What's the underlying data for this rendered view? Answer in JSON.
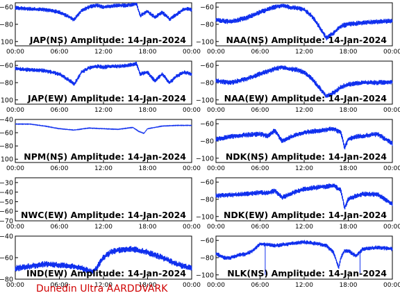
{
  "footer": "Dunedin Ultra AARDDVARK",
  "colors": {
    "trace": "#1030ee",
    "axis": "#000000",
    "footer": "#d00000"
  },
  "x_ticks": [
    "00:00",
    "06:00",
    "12:00",
    "18:00",
    "00:00"
  ],
  "chart_data": [
    {
      "type": "line",
      "title": "JAP(NS) Amplitude: 14-Jan-2024",
      "x_hours": [
        0,
        2,
        4,
        6,
        7.5,
        8,
        9,
        10,
        11,
        12,
        13,
        14,
        15,
        16,
        16.5,
        17,
        18,
        19,
        20,
        21,
        22,
        23,
        24
      ],
      "y": [
        -61,
        -62,
        -63,
        -66,
        -72,
        -75,
        -64,
        -60,
        -58,
        -60,
        -59,
        -58,
        -58,
        -57,
        -56,
        -70,
        -65,
        -72,
        -66,
        -74,
        -68,
        -62,
        -63
      ],
      "band": 5,
      "ylim": [
        -105,
        -55
      ],
      "y_ticks": [
        -100,
        -80,
        -60
      ]
    },
    {
      "type": "line",
      "title": "NAA(NS) Amplitude: 14-Jan-2024",
      "x_hours": [
        0,
        2,
        4,
        6,
        8,
        9,
        10,
        11,
        12,
        13,
        14,
        15,
        16,
        17,
        18,
        20,
        22,
        24
      ],
      "y": [
        -75,
        -77,
        -73,
        -66,
        -60,
        -58,
        -60,
        -61,
        -63,
        -70,
        -82,
        -96,
        -90,
        -82,
        -80,
        -78,
        -77,
        -76
      ],
      "band": 6,
      "ylim": [
        -105,
        -55
      ],
      "y_ticks": [
        -100,
        -80,
        -60
      ]
    },
    {
      "type": "line",
      "title": "JAP(EW) Amplitude: 14-Jan-2024",
      "x_hours": [
        0,
        2,
        4,
        6,
        7.5,
        8,
        9,
        10,
        11,
        12,
        13,
        14,
        15,
        16,
        16.5,
        17,
        18,
        19,
        20,
        21,
        22,
        23,
        24
      ],
      "y": [
        -64,
        -65,
        -66,
        -70,
        -78,
        -82,
        -68,
        -63,
        -61,
        -62,
        -61,
        -61,
        -60,
        -59,
        -58,
        -70,
        -68,
        -78,
        -70,
        -80,
        -72,
        -68,
        -70
      ],
      "band": 5,
      "ylim": [
        -105,
        -55
      ],
      "y_ticks": [
        -100,
        -80,
        -60
      ]
    },
    {
      "type": "line",
      "title": "NAA(EW) Amplitude: 14-Jan-2024",
      "x_hours": [
        0,
        2,
        4,
        6,
        8,
        9,
        10,
        11,
        12,
        13,
        14,
        15,
        16,
        17,
        18,
        20,
        22,
        24
      ],
      "y": [
        -78,
        -80,
        -76,
        -70,
        -64,
        -62,
        -64,
        -65,
        -68,
        -75,
        -85,
        -96,
        -92,
        -85,
        -82,
        -80,
        -80,
        -79
      ],
      "band": 6,
      "ylim": [
        -105,
        -55
      ],
      "y_ticks": [
        -100,
        -80,
        -60
      ]
    },
    {
      "type": "line",
      "title": "NPM(NS) Amplitude: 14-Jan-2024",
      "x_hours": [
        0,
        2,
        4,
        6,
        8,
        10,
        12,
        14,
        16,
        16.8,
        17.5,
        18,
        20,
        22,
        24
      ],
      "y": [
        -47,
        -47,
        -50,
        -54,
        -56,
        -53,
        -54,
        -55,
        -52,
        -58,
        -61,
        -54,
        -50,
        -49,
        -49
      ],
      "band": 1,
      "ylim": [
        -105,
        -40
      ],
      "y_ticks": [
        -100,
        -80,
        -60,
        -40
      ]
    },
    {
      "type": "line",
      "title": "NDK(NS) Amplitude: 14-Jan-2024",
      "x_hours": [
        0,
        2,
        4,
        6,
        7,
        8,
        9,
        10,
        12,
        14,
        16,
        17,
        17.5,
        18,
        19,
        20,
        22,
        24
      ],
      "y": [
        -78,
        -75,
        -73,
        -72,
        -74,
        -68,
        -80,
        -76,
        -70,
        -68,
        -66,
        -70,
        -88,
        -78,
        -75,
        -74,
        -72,
        -83
      ],
      "band": 6,
      "ylim": [
        -105,
        -55
      ],
      "y_ticks": [
        -100,
        -80,
        -60
      ]
    },
    {
      "type": "line",
      "title": "NWC(EW) Amplitude: 14-Jan-2024",
      "x_hours": [],
      "y": [],
      "band": 0,
      "ylim": [
        -70,
        -25
      ],
      "y_ticks": [
        -70,
        -60,
        -50,
        -40,
        -30
      ]
    },
    {
      "type": "line",
      "title": "NDK(EW) Amplitude: 14-Jan-2024",
      "x_hours": [
        0,
        2,
        4,
        6,
        7,
        8,
        9,
        10,
        12,
        14,
        16,
        17,
        17.5,
        18,
        19,
        20,
        22,
        24
      ],
      "y": [
        -76,
        -75,
        -74,
        -72,
        -73,
        -70,
        -78,
        -74,
        -68,
        -66,
        -64,
        -70,
        -90,
        -80,
        -76,
        -74,
        -74,
        -86
      ],
      "band": 6,
      "ylim": [
        -105,
        -55
      ],
      "y_ticks": [
        -100,
        -80,
        -60
      ]
    },
    {
      "type": "line",
      "title": "IND(EW) Amplitude: 14-Jan-2024",
      "x_hours": [
        0,
        2,
        4,
        6,
        8,
        10,
        10.5,
        11,
        12,
        13,
        14,
        16,
        18,
        20,
        22,
        24
      ],
      "y": [
        -70,
        -68,
        -66,
        -67,
        -68,
        -72,
        -73,
        -70,
        -60,
        -55,
        -53,
        -52,
        -55,
        -60,
        -66,
        -70
      ],
      "band": 6,
      "ylim": [
        -80,
        -40
      ],
      "y_ticks": [
        -80,
        -60,
        -40
      ]
    },
    {
      "type": "line",
      "title": "NLK(NS) Amplitude: 14-Jan-2024",
      "x_hours": [
        0,
        1,
        2,
        3,
        4,
        5,
        6,
        8,
        10,
        12,
        14,
        15,
        16,
        16.7,
        17,
        17.5,
        18,
        19,
        20,
        22,
        24
      ],
      "y": [
        -75,
        -80,
        -80,
        -77,
        -76,
        -72,
        -64,
        -66,
        -64,
        -62,
        -64,
        -66,
        -74,
        -92,
        -80,
        -72,
        -72,
        -78,
        -70,
        -68,
        -70
      ],
      "band": 5,
      "spikes": [
        {
          "x": 6.7,
          "y": -100
        },
        {
          "x": 19.6,
          "y": -98
        }
      ],
      "ylim": [
        -105,
        -55
      ],
      "y_ticks": [
        -100,
        -80,
        -60
      ]
    }
  ]
}
